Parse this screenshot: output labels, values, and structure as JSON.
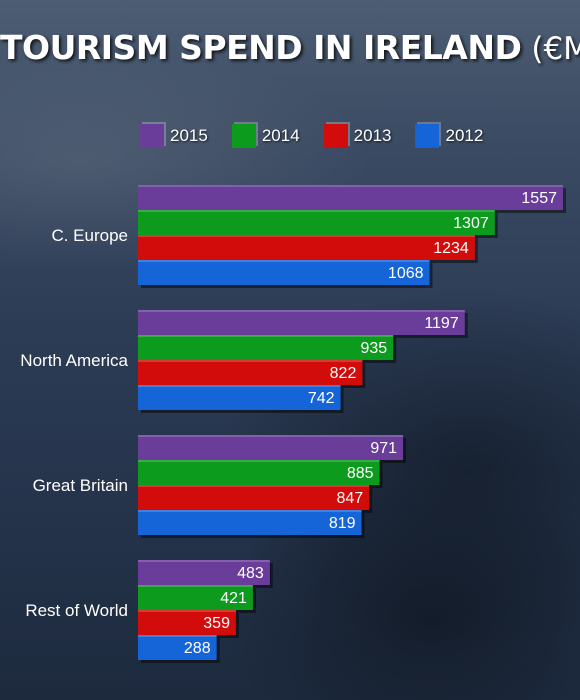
{
  "title": "TOURISM SPEND IN IRELAND",
  "title_unit": "(€M)",
  "chart_data": {
    "type": "bar",
    "orientation": "horizontal",
    "title": "TOURISM SPEND IN IRELAND (€M)",
    "categories": [
      "C. Europe",
      "North America",
      "Great Britain",
      "Rest of World"
    ],
    "series": [
      {
        "name": "2015",
        "color": "#6a3d9a",
        "values": [
          1557,
          1197,
          971,
          483
        ]
      },
      {
        "name": "2014",
        "color": "#0d9b1e",
        "values": [
          1307,
          935,
          885,
          421
        ]
      },
      {
        "name": "2013",
        "color": "#d20b0b",
        "values": [
          1234,
          822,
          847,
          359
        ]
      },
      {
        "name": "2012",
        "color": "#1565d8",
        "values": [
          1068,
          742,
          819,
          288
        ]
      }
    ],
    "legend_position": "top",
    "data_labels": true,
    "grid": false
  }
}
